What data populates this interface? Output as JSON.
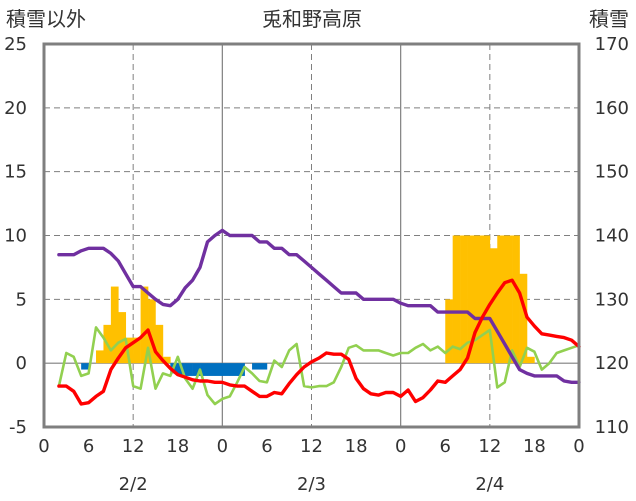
{
  "chart_data": {
    "type": "combo",
    "title": "兎和野高原",
    "left_axis": {
      "label": "積雪以外",
      "ticks": [
        "25",
        "20",
        "15",
        "10",
        "5",
        "0",
        "-5"
      ],
      "range": [
        -5,
        25
      ]
    },
    "right_axis": {
      "label": "積雪",
      "ticks": [
        "170",
        "160",
        "150",
        "140",
        "130",
        "120",
        "110"
      ],
      "range": [
        110,
        170
      ]
    },
    "x_axis": {
      "range_hours": [
        0,
        72
      ],
      "hour_ticks": [
        "0",
        "6",
        "12",
        "18",
        "0",
        "6",
        "12",
        "18",
        "0",
        "6",
        "12",
        "18",
        "0"
      ],
      "date_labels": [
        "2/2",
        "2/3",
        "2/4"
      ],
      "date_centers_hours": [
        12,
        36,
        60
      ],
      "day_boundaries_hours": [
        24,
        48
      ],
      "dashed_guides_hours": [
        12,
        36,
        60
      ]
    },
    "grid": "horizontal dashed at 5-unit intervals",
    "colors": {
      "precipitation": "#FFC000",
      "snowfall_negative": "#0070C0",
      "temperature": "#FF0000",
      "snow_depth": "#7030A0",
      "other": "#92D050",
      "frame": "#7F7F7F",
      "grid": "#7F7F7F"
    },
    "series": [
      {
        "name": "precipitation",
        "kind": "bar",
        "axis": "left",
        "x": [
          7.5,
          8.5,
          9.5,
          10.5,
          11.5,
          12.5,
          13.5,
          14.5,
          15.5,
          16.5,
          54.5,
          55.5,
          56.5,
          57.5,
          58.5,
          59.5,
          60.5,
          61.5,
          62.5,
          63.5,
          64.5,
          65.5
        ],
        "values": [
          1,
          3,
          6,
          4,
          2,
          2,
          6,
          5,
          3,
          0.5,
          5,
          10,
          10,
          10,
          10,
          10,
          9,
          10,
          10,
          10,
          7,
          0.5
        ]
      },
      {
        "name": "snowfall_change",
        "kind": "bar",
        "axis": "left",
        "x": [
          5.5,
          17.5,
          18.5,
          19.5,
          20.5,
          21.5,
          22.5,
          23.5,
          24.5,
          25.5,
          26.5,
          28.5,
          29.5
        ],
        "values": [
          -0.5,
          -0.8,
          -1,
          -1,
          -1,
          -1,
          -1,
          -1,
          -1,
          -1,
          -1,
          -0.5,
          -0.5
        ]
      },
      {
        "name": "temperature",
        "kind": "line",
        "axis": "left",
        "x": [
          2,
          3,
          4,
          5,
          6,
          7,
          8,
          9,
          10,
          11,
          12,
          13,
          14,
          15,
          16,
          17,
          18,
          19,
          20,
          21,
          22,
          23,
          24,
          25,
          26,
          27,
          28,
          29,
          30,
          31,
          32,
          33,
          34,
          35,
          36,
          37,
          38,
          39,
          40,
          41,
          42,
          43,
          44,
          45,
          46,
          47,
          48,
          49,
          50,
          51,
          52,
          53,
          54,
          55,
          56,
          57,
          58,
          59,
          60,
          61,
          62,
          63,
          64,
          65,
          66,
          67,
          68,
          69,
          70,
          71,
          72
        ],
        "values": [
          -1.8,
          -1.8,
          -2.2,
          -3.2,
          -3.1,
          -2.6,
          -2.2,
          -0.5,
          0.4,
          1.2,
          1.6,
          2.0,
          2.6,
          0.9,
          0.2,
          -0.4,
          -0.9,
          -1.1,
          -1.3,
          -1.4,
          -1.4,
          -1.5,
          -1.5,
          -1.7,
          -1.8,
          -1.8,
          -2.2,
          -2.6,
          -2.6,
          -2.3,
          -2.4,
          -1.6,
          -0.9,
          -0.3,
          0.1,
          0.4,
          0.8,
          0.7,
          0.7,
          0.3,
          -1.2,
          -2.0,
          -2.4,
          -2.5,
          -2.3,
          -2.3,
          -2.6,
          -2.1,
          -3.0,
          -2.7,
          -2.1,
          -1.4,
          -1.5,
          -1.0,
          -0.5,
          0.4,
          2.4,
          3.6,
          4.6,
          5.5,
          6.3,
          6.5,
          5.5,
          3.6,
          2.9,
          2.3,
          2.2,
          2.1,
          2.0,
          1.8,
          1.3
        ]
      },
      {
        "name": "snow_depth",
        "kind": "line",
        "axis": "left",
        "x": [
          2,
          4,
          5,
          6,
          7,
          8,
          9,
          10,
          11,
          12,
          13,
          14,
          15,
          16,
          17,
          18,
          19,
          20,
          21,
          22,
          23,
          24,
          25,
          26,
          27,
          28,
          29,
          30,
          31,
          32,
          33,
          34,
          35,
          36,
          37,
          38,
          39,
          40,
          41,
          42,
          43,
          44,
          45,
          46,
          47,
          48,
          49,
          50,
          51,
          52,
          53,
          54,
          55,
          56,
          57,
          58,
          59,
          60,
          61,
          62,
          63,
          64,
          65,
          66,
          67,
          68,
          69,
          70,
          71,
          72
        ],
        "values": [
          8.5,
          8.5,
          8.8,
          9.0,
          9.0,
          9.0,
          8.6,
          8.0,
          7.0,
          6.0,
          6.0,
          5.5,
          5.0,
          4.6,
          4.5,
          5.0,
          5.9,
          6.5,
          7.5,
          9.5,
          10.0,
          10.4,
          10.0,
          10.0,
          10.0,
          10.0,
          9.5,
          9.5,
          9.0,
          9.0,
          8.5,
          8.5,
          8.0,
          7.5,
          7.0,
          6.5,
          6.0,
          5.5,
          5.5,
          5.5,
          5.0,
          5.0,
          5.0,
          5.0,
          5.0,
          4.7,
          4.5,
          4.5,
          4.5,
          4.5,
          4.0,
          4.0,
          4.0,
          4.0,
          4.0,
          3.5,
          3.5,
          3.5,
          2.5,
          1.5,
          0.5,
          -0.5,
          -0.8,
          -1.0,
          -1.0,
          -1.0,
          -1.0,
          -1.4,
          -1.5,
          -1.5
        ]
      },
      {
        "name": "other",
        "kind": "line",
        "axis": "left",
        "x": [
          2,
          3,
          4,
          5,
          6,
          7,
          8,
          9,
          10,
          11,
          12,
          13,
          14,
          15,
          16,
          17,
          18,
          19,
          20,
          21,
          22,
          23,
          24,
          25,
          26,
          27,
          28,
          29,
          30,
          31,
          32,
          33,
          34,
          35,
          36,
          37,
          38,
          39,
          40,
          41,
          42,
          43,
          44,
          45,
          46,
          47,
          48,
          49,
          50,
          51,
          52,
          53,
          54,
          55,
          56,
          57,
          58,
          59,
          60,
          61,
          62,
          63,
          64,
          65,
          66,
          67,
          68,
          69,
          70,
          71,
          72
        ],
        "values": [
          -1.8,
          0.8,
          0.5,
          -1.0,
          -0.8,
          2.8,
          2.0,
          1.0,
          1.6,
          1.9,
          -1.8,
          -2.0,
          1.2,
          -2.0,
          -0.8,
          -1.0,
          0.5,
          -1.2,
          -2.0,
          -0.5,
          -2.5,
          -3.2,
          -2.8,
          -2.6,
          -1.5,
          -0.3,
          -0.8,
          -1.4,
          -1.5,
          0.2,
          -0.3,
          1.0,
          1.5,
          -1.8,
          -1.9,
          -1.8,
          -1.8,
          -1.5,
          -0.3,
          1.2,
          1.4,
          1.0,
          1.0,
          1.0,
          0.8,
          0.6,
          0.8,
          0.8,
          1.2,
          1.5,
          1.0,
          1.3,
          0.8,
          1.3,
          1.1,
          1.6,
          1.8,
          2.2,
          2.6,
          -1.9,
          -1.5,
          1.0,
          -0.3,
          1.2,
          0.9,
          -0.5,
          0.0,
          0.8,
          1.0,
          1.2,
          1.4
        ]
      }
    ]
  }
}
